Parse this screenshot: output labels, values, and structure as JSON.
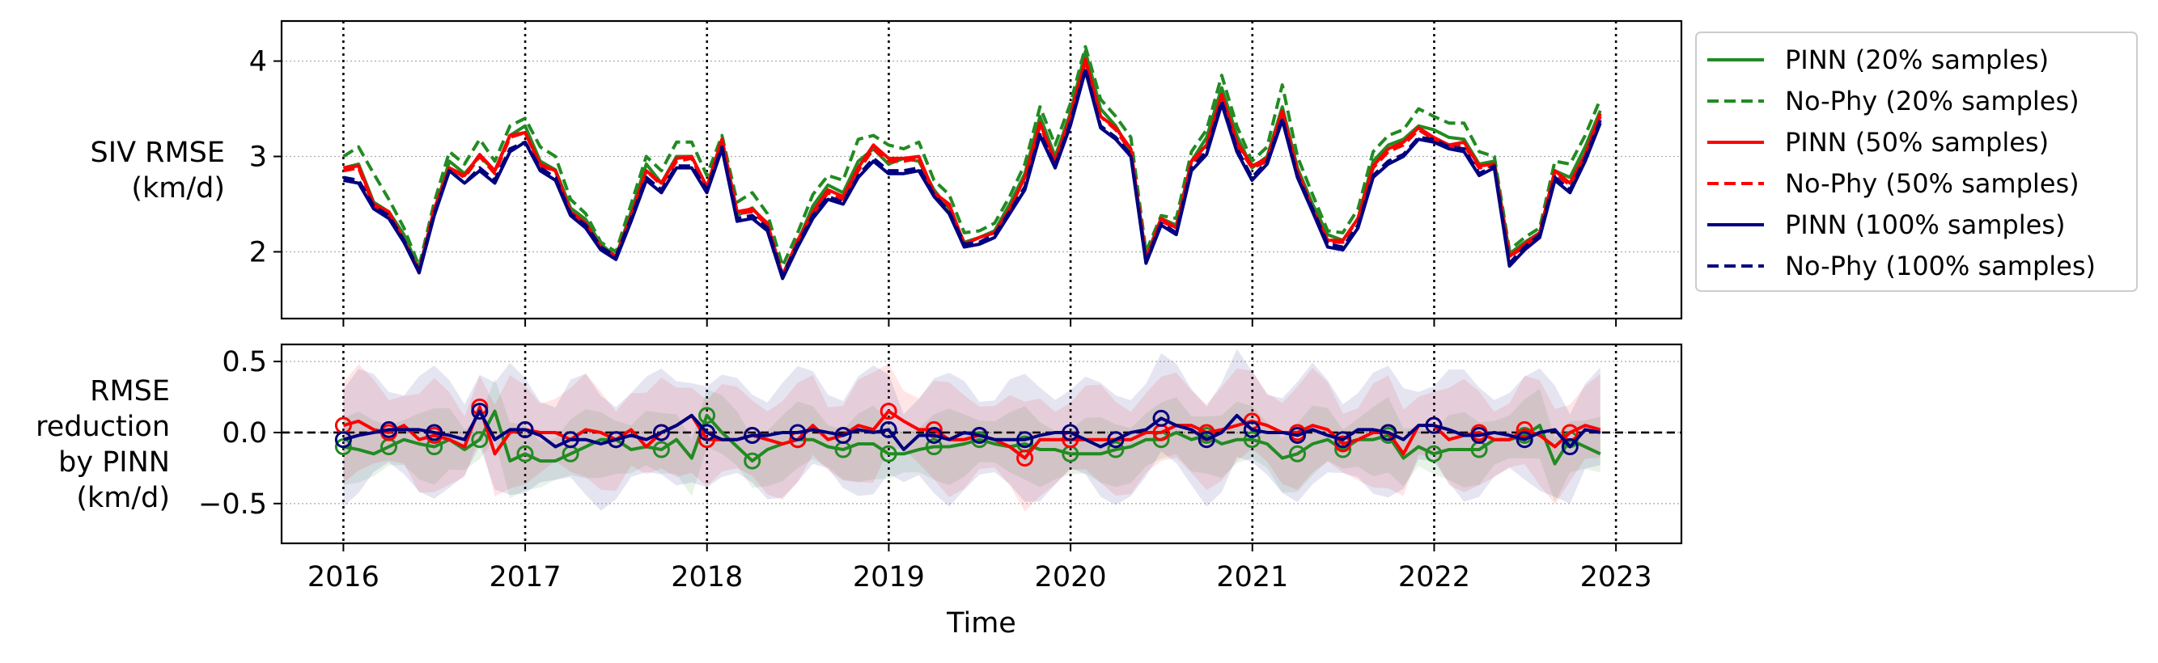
{
  "chart_data": [
    {
      "type": "line",
      "ylabel": [
        "SIV RMSE",
        "(km/d)"
      ],
      "xlabel": "",
      "xlim": [
        2015.66,
        2023.36
      ],
      "ylim": [
        1.3,
        4.42
      ],
      "yticks": [
        2,
        3,
        4
      ],
      "ytick_labels": [
        "2",
        "3",
        "4"
      ],
      "grid": "horizontal dotted",
      "year_lines": [
        2016,
        2017,
        2018,
        2019,
        2020,
        2021,
        2022,
        2023
      ],
      "x_start": 2016.0,
      "x_step": 0.0833,
      "series": [
        {
          "name": "PINN (20% samples)",
          "color": "#228b22",
          "dash": "solid",
          "values": [
            2.88,
            2.92,
            2.52,
            2.42,
            2.18,
            1.82,
            2.42,
            2.95,
            2.82,
            3.0,
            2.85,
            3.22,
            3.32,
            2.95,
            2.86,
            2.46,
            2.34,
            2.08,
            1.95,
            2.42,
            2.92,
            2.72,
            3.0,
            3.0,
            2.68,
            3.18,
            2.38,
            2.46,
            2.28,
            1.76,
            2.1,
            2.48,
            2.7,
            2.62,
            2.95,
            3.08,
            2.92,
            2.98,
            2.95,
            2.65,
            2.45,
            2.1,
            2.15,
            2.22,
            2.5,
            2.82,
            3.42,
            3.0,
            3.45,
            4.1,
            3.5,
            3.32,
            3.05,
            1.95,
            2.35,
            2.28,
            2.95,
            3.2,
            3.72,
            3.22,
            2.88,
            3.0,
            3.52,
            2.88,
            2.5,
            2.18,
            2.12,
            2.35,
            2.95,
            3.12,
            3.18,
            3.32,
            3.28,
            3.2,
            3.18,
            2.92,
            2.95,
            1.98,
            2.1,
            2.2,
            2.85,
            2.78,
            3.1,
            3.48
          ]
        },
        {
          "name": "No-Phy (20% samples)",
          "color": "#228b22",
          "dash": "dashed",
          "values": [
            3.0,
            3.1,
            2.82,
            2.55,
            2.25,
            1.85,
            2.52,
            3.05,
            2.92,
            3.18,
            2.95,
            3.32,
            3.4,
            3.1,
            3.0,
            2.55,
            2.4,
            2.1,
            2.0,
            2.5,
            3.0,
            2.85,
            3.15,
            3.15,
            2.8,
            3.22,
            2.52,
            2.62,
            2.4,
            1.85,
            2.2,
            2.6,
            2.8,
            2.75,
            3.18,
            3.22,
            3.12,
            3.08,
            3.15,
            2.75,
            2.6,
            2.2,
            2.22,
            2.3,
            2.58,
            2.92,
            3.52,
            3.12,
            3.55,
            4.15,
            3.6,
            3.42,
            3.2,
            2.0,
            2.38,
            2.35,
            3.05,
            3.28,
            3.85,
            3.32,
            2.95,
            3.1,
            3.75,
            3.0,
            2.6,
            2.22,
            2.2,
            2.45,
            3.05,
            3.22,
            3.28,
            3.5,
            3.42,
            3.35,
            3.35,
            3.05,
            3.0,
            2.02,
            2.15,
            2.25,
            2.95,
            2.92,
            3.22,
            3.6
          ]
        },
        {
          "name": "PINN (50% samples)",
          "color": "#ff0000",
          "dash": "solid",
          "values": [
            2.88,
            2.9,
            2.5,
            2.42,
            2.12,
            1.8,
            2.45,
            2.88,
            2.8,
            3.02,
            2.85,
            3.22,
            3.25,
            2.92,
            2.85,
            2.42,
            2.3,
            2.05,
            1.95,
            2.38,
            2.85,
            2.72,
            2.98,
            3.0,
            2.68,
            3.18,
            2.42,
            2.45,
            2.3,
            1.75,
            2.12,
            2.42,
            2.65,
            2.58,
            2.88,
            3.12,
            2.98,
            2.98,
            3.0,
            2.62,
            2.5,
            2.08,
            2.15,
            2.2,
            2.45,
            2.78,
            3.35,
            2.95,
            3.42,
            4.02,
            3.42,
            3.3,
            3.08,
            1.92,
            2.35,
            2.25,
            2.95,
            3.12,
            3.65,
            3.15,
            2.9,
            2.98,
            3.48,
            2.85,
            2.45,
            2.12,
            2.12,
            2.35,
            2.9,
            3.08,
            3.15,
            3.3,
            3.2,
            3.12,
            3.15,
            2.9,
            2.92,
            1.95,
            2.08,
            2.2,
            2.85,
            2.72,
            3.02,
            3.45
          ]
        },
        {
          "name": "No-Phy (50% samples)",
          "color": "#ff0000",
          "dash": "dashed",
          "values": [
            2.85,
            2.88,
            2.48,
            2.4,
            2.12,
            1.78,
            2.42,
            2.88,
            2.78,
            3.0,
            2.82,
            3.2,
            3.25,
            2.9,
            2.85,
            2.4,
            2.28,
            2.05,
            1.95,
            2.38,
            2.85,
            2.7,
            2.95,
            2.98,
            2.66,
            3.15,
            2.4,
            2.42,
            2.28,
            1.75,
            2.1,
            2.4,
            2.62,
            2.55,
            2.85,
            3.08,
            2.95,
            2.95,
            2.98,
            2.6,
            2.48,
            2.08,
            2.15,
            2.2,
            2.45,
            2.78,
            3.32,
            2.95,
            3.4,
            4.0,
            3.42,
            3.28,
            3.05,
            1.92,
            2.32,
            2.25,
            2.92,
            3.1,
            3.62,
            3.12,
            2.88,
            2.95,
            3.45,
            2.82,
            2.45,
            2.1,
            2.1,
            2.35,
            2.88,
            3.05,
            3.12,
            3.28,
            3.18,
            3.1,
            3.12,
            2.88,
            2.9,
            1.95,
            2.05,
            2.18,
            2.82,
            2.7,
            3.0,
            3.42
          ]
        },
        {
          "name": "PINN (100% samples)",
          "color": "#00007f",
          "dash": "solid",
          "values": [
            2.75,
            2.72,
            2.45,
            2.35,
            2.1,
            1.78,
            2.38,
            2.85,
            2.72,
            2.85,
            2.72,
            3.05,
            3.15,
            2.85,
            2.75,
            2.38,
            2.25,
            2.02,
            1.92,
            2.32,
            2.75,
            2.62,
            2.88,
            2.88,
            2.62,
            3.08,
            2.32,
            2.35,
            2.22,
            1.72,
            2.05,
            2.35,
            2.55,
            2.5,
            2.78,
            2.95,
            2.82,
            2.82,
            2.85,
            2.58,
            2.4,
            2.05,
            2.08,
            2.15,
            2.4,
            2.65,
            3.22,
            2.88,
            3.32,
            3.9,
            3.3,
            3.18,
            3.0,
            1.88,
            2.28,
            2.18,
            2.85,
            3.02,
            3.55,
            3.05,
            2.75,
            2.92,
            3.38,
            2.78,
            2.42,
            2.05,
            2.02,
            2.25,
            2.78,
            2.92,
            3.0,
            3.18,
            3.15,
            3.08,
            3.05,
            2.8,
            2.88,
            1.85,
            2.02,
            2.15,
            2.75,
            2.62,
            2.95,
            3.35
          ]
        },
        {
          "name": "No-Phy (100% samples)",
          "color": "#00007f",
          "dash": "dashed",
          "values": [
            2.78,
            2.75,
            2.48,
            2.38,
            2.12,
            1.8,
            2.4,
            2.85,
            2.72,
            2.88,
            2.75,
            3.08,
            3.15,
            2.88,
            2.78,
            2.4,
            2.28,
            2.05,
            1.95,
            2.35,
            2.78,
            2.65,
            2.9,
            2.9,
            2.65,
            3.1,
            2.35,
            2.38,
            2.25,
            1.75,
            2.08,
            2.38,
            2.58,
            2.52,
            2.8,
            2.98,
            2.85,
            2.85,
            2.88,
            2.6,
            2.42,
            2.08,
            2.1,
            2.18,
            2.42,
            2.68,
            3.25,
            2.9,
            3.35,
            3.92,
            3.32,
            3.2,
            3.02,
            1.9,
            2.3,
            2.2,
            2.88,
            3.05,
            3.58,
            3.08,
            2.78,
            2.95,
            3.4,
            2.8,
            2.45,
            2.08,
            2.05,
            2.28,
            2.8,
            2.95,
            3.02,
            3.2,
            3.18,
            3.1,
            3.08,
            2.82,
            2.9,
            1.88,
            2.05,
            2.18,
            2.78,
            2.65,
            2.98,
            3.38
          ]
        }
      ]
    },
    {
      "type": "line",
      "ylabel": [
        "RMSE",
        "reduction",
        "by PINN",
        "(km/d)"
      ],
      "xlabel": "Time",
      "xlim": [
        2015.66,
        2023.36
      ],
      "ylim": [
        -0.78,
        0.62
      ],
      "yticks": [
        0.5,
        0.0,
        -0.5
      ],
      "ytick_labels": [
        "0.5",
        "0.0",
        "−0.5"
      ],
      "xticks": [
        2016,
        2017,
        2018,
        2019,
        2020,
        2021,
        2022,
        2023
      ],
      "xtick_labels": [
        "2016",
        "2017",
        "2018",
        "2019",
        "2020",
        "2021",
        "2022",
        "2023"
      ],
      "grid": "horizontal dotted",
      "zero_line": "dashed",
      "year_lines": [
        2016,
        2017,
        2018,
        2019,
        2020,
        2021,
        2022,
        2023
      ],
      "x_start": 2016.0,
      "x_step": 0.0833,
      "series": [
        {
          "name": "20% samples",
          "color": "#228b22",
          "band": 0.2,
          "values": [
            -0.1,
            -0.12,
            -0.15,
            -0.1,
            -0.05,
            -0.08,
            -0.1,
            -0.05,
            -0.12,
            -0.05,
            0.15,
            -0.2,
            -0.15,
            -0.2,
            -0.2,
            -0.15,
            -0.1,
            -0.05,
            -0.05,
            -0.12,
            -0.1,
            -0.12,
            -0.05,
            -0.18,
            0.12,
            0.0,
            -0.1,
            -0.2,
            -0.12,
            -0.08,
            -0.05,
            -0.05,
            -0.1,
            -0.12,
            -0.08,
            -0.08,
            -0.15,
            -0.15,
            -0.12,
            -0.1,
            -0.1,
            -0.08,
            -0.05,
            -0.08,
            -0.1,
            -0.08,
            -0.12,
            -0.12,
            -0.15,
            -0.15,
            -0.15,
            -0.12,
            -0.1,
            -0.05,
            -0.05,
            0.0,
            -0.05,
            -0.02,
            -0.08,
            -0.05,
            -0.05,
            -0.08,
            -0.18,
            -0.15,
            -0.08,
            -0.05,
            -0.12,
            -0.05,
            -0.05,
            -0.02,
            -0.18,
            -0.1,
            -0.15,
            -0.12,
            -0.12,
            -0.12,
            -0.05,
            -0.05,
            -0.02,
            0.05,
            -0.22,
            -0.05,
            -0.1,
            -0.15
          ]
        },
        {
          "name": "50% samples",
          "color": "#ff0000",
          "band": 0.3,
          "values": [
            0.05,
            0.08,
            0.02,
            0.0,
            0.05,
            -0.05,
            -0.02,
            -0.05,
            -0.1,
            0.18,
            -0.15,
            0.0,
            0.02,
            0.0,
            0.0,
            -0.05,
            0.02,
            0.0,
            -0.05,
            0.02,
            -0.1,
            0.0,
            0.05,
            0.12,
            -0.05,
            -0.05,
            -0.05,
            -0.02,
            -0.05,
            -0.08,
            -0.05,
            0.05,
            -0.05,
            -0.02,
            0.05,
            0.02,
            0.15,
            0.08,
            0.02,
            0.02,
            -0.05,
            -0.05,
            -0.02,
            -0.05,
            -0.1,
            -0.18,
            -0.05,
            -0.05,
            -0.05,
            -0.05,
            -0.05,
            -0.05,
            -0.05,
            0.0,
            0.0,
            0.05,
            0.05,
            0.0,
            0.02,
            0.05,
            0.08,
            0.05,
            0.0,
            0.0,
            0.05,
            0.02,
            -0.08,
            -0.05,
            0.0,
            0.0,
            -0.15,
            0.05,
            0.05,
            -0.05,
            -0.02,
            0.0,
            -0.05,
            -0.05,
            0.02,
            -0.02,
            -0.1,
            0.0,
            0.05,
            0.02
          ]
        },
        {
          "name": "100% samples",
          "color": "#00007f",
          "band": 0.35,
          "values": [
            -0.05,
            -0.02,
            0.0,
            0.02,
            0.02,
            0.02,
            0.0,
            -0.02,
            -0.05,
            0.15,
            -0.05,
            0.02,
            0.02,
            -0.02,
            -0.1,
            -0.05,
            -0.05,
            -0.08,
            -0.05,
            -0.02,
            -0.05,
            0.0,
            0.05,
            0.12,
            0.0,
            -0.05,
            -0.05,
            -0.02,
            -0.02,
            0.0,
            0.0,
            0.02,
            0.0,
            -0.02,
            0.02,
            0.0,
            0.02,
            -0.12,
            -0.02,
            -0.02,
            -0.05,
            0.0,
            -0.02,
            -0.05,
            -0.05,
            -0.05,
            -0.02,
            0.0,
            0.0,
            -0.05,
            -0.1,
            -0.05,
            0.0,
            0.02,
            0.1,
            0.05,
            0.02,
            -0.05,
            0.0,
            0.12,
            0.02,
            0.0,
            0.0,
            -0.02,
            0.02,
            -0.02,
            -0.05,
            0.02,
            0.02,
            0.0,
            -0.05,
            0.05,
            0.05,
            0.02,
            -0.02,
            -0.02,
            0.0,
            -0.02,
            -0.05,
            0.0,
            0.02,
            -0.1,
            0.02,
            0.0
          ]
        }
      ]
    }
  ],
  "legend": {
    "placement": "outside right, top",
    "entries": [
      {
        "label": "PINN (20% samples)",
        "color": "#228b22",
        "dash": "solid"
      },
      {
        "label": "No-Phy (20% samples)",
        "color": "#228b22",
        "dash": "dashed"
      },
      {
        "label": "PINN (50% samples)",
        "color": "#ff0000",
        "dash": "solid"
      },
      {
        "label": "No-Phy (50% samples)",
        "color": "#ff0000",
        "dash": "dashed"
      },
      {
        "label": "PINN (100% samples)",
        "color": "#00007f",
        "dash": "solid"
      },
      {
        "label": "No-Phy (100% samples)",
        "color": "#00007f",
        "dash": "dashed"
      }
    ]
  }
}
